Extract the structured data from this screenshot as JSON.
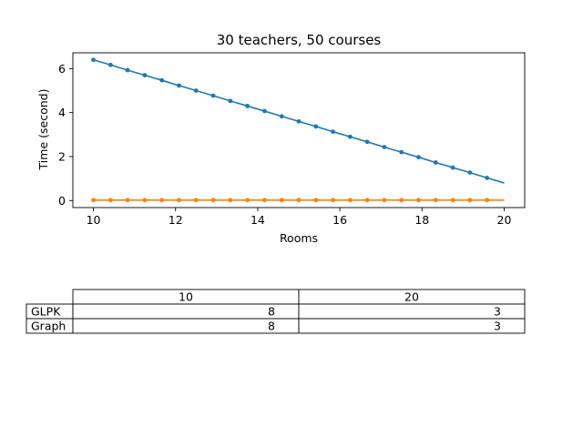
{
  "chart_data": {
    "type": "line",
    "title": "30 teachers, 50 courses",
    "xlabel": "Rooms",
    "ylabel": "Time (second)",
    "xlim": [
      9.5,
      20.5
    ],
    "ylim": [
      -0.32,
      6.72
    ],
    "xticks": [
      10,
      12,
      14,
      16,
      18,
      20
    ],
    "yticks": [
      0,
      2,
      4,
      6
    ],
    "grid": false,
    "x": [
      10.0,
      10.4167,
      10.8333,
      11.25,
      11.6667,
      12.0833,
      12.5,
      12.9167,
      13.3333,
      13.75,
      14.1667,
      14.5833,
      15.0,
      15.4167,
      15.8333,
      16.25,
      16.6667,
      17.0833,
      17.5,
      17.9167,
      18.3333,
      18.75,
      19.1667,
      19.5833,
      20.0
    ],
    "series": [
      {
        "color": "#1f77b4",
        "markers": true,
        "values": [
          6.4,
          6.17,
          5.93,
          5.7,
          5.47,
          5.23,
          5.0,
          4.77,
          4.53,
          4.3,
          4.07,
          3.83,
          3.6,
          3.37,
          3.13,
          2.9,
          2.67,
          2.43,
          2.2,
          1.97,
          1.73,
          1.5,
          1.27,
          1.03,
          0.8
        ]
      },
      {
        "color": "#ff7f0e",
        "markers": true,
        "values": [
          0.02,
          0.02,
          0.02,
          0.02,
          0.02,
          0.02,
          0.02,
          0.02,
          0.02,
          0.02,
          0.02,
          0.02,
          0.02,
          0.02,
          0.02,
          0.02,
          0.02,
          0.02,
          0.02,
          0.02,
          0.02,
          0.02,
          0.02,
          0.02,
          0.02
        ]
      }
    ],
    "table": {
      "columns": [
        "10",
        "20"
      ],
      "rows": [
        {
          "label": "GLPK",
          "cells": [
            "8",
            "3"
          ]
        },
        {
          "label": "Graph",
          "cells": [
            "8",
            "3"
          ]
        }
      ]
    }
  }
}
